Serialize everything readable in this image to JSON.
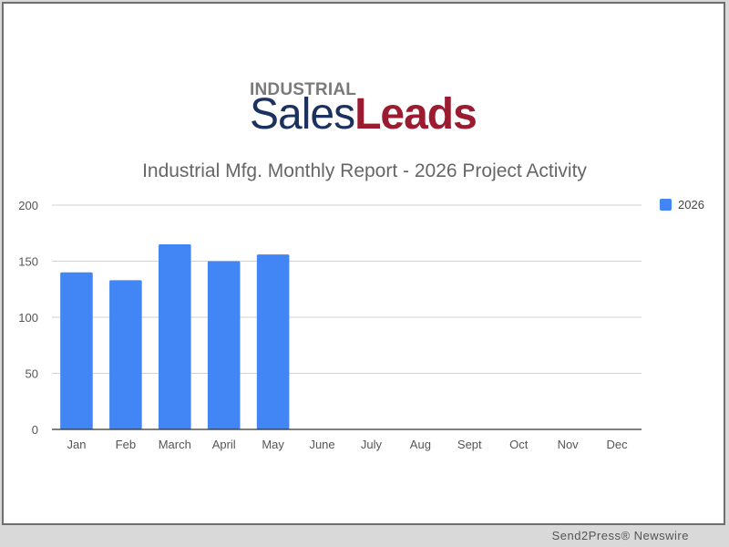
{
  "logo": {
    "top_text": "INDUSTRIAL",
    "bottom_part1": "Sales",
    "bottom_part2": "Leads",
    "colors": {
      "top": "#7a7a7a",
      "sales": "#1b3260",
      "leads": "#9b1b30"
    }
  },
  "footer": {
    "text": "Send2Press® Newswire"
  },
  "colors": {
    "bar": "#4285f4",
    "grid": "#d0d0d0",
    "axis": "#333333",
    "tick_text": "#555555"
  },
  "chart_data": {
    "type": "bar",
    "title": "Industrial Mfg. Monthly Report - 2026 Project Activity",
    "xlabel": "",
    "ylabel": "",
    "categories": [
      "Jan",
      "Feb",
      "March",
      "April",
      "May",
      "June",
      "July",
      "Aug",
      "Sept",
      "Oct",
      "Nov",
      "Dec"
    ],
    "series": [
      {
        "name": "2026",
        "values": [
          140,
          133,
          165,
          150,
          156,
          0,
          0,
          0,
          0,
          0,
          0,
          0
        ]
      }
    ],
    "ylim": [
      0,
      200
    ],
    "yticks": [
      0,
      50,
      100,
      150,
      200
    ],
    "grid": true,
    "legend_position": "right"
  }
}
